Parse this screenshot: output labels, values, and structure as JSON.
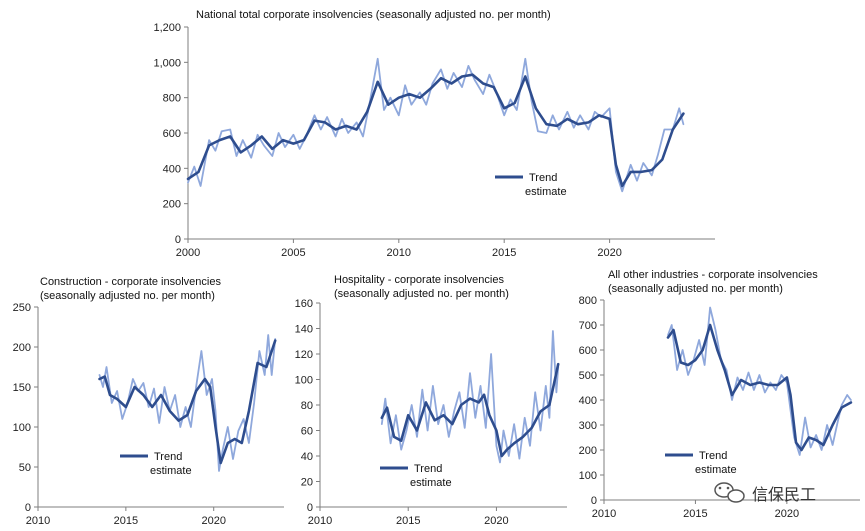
{
  "chart_data": [
    {
      "id": "national",
      "type": "line",
      "title": "National total corporate insolvencies (seasonally adjusted no. per month)",
      "subtitle": "",
      "xlim": [
        2000,
        2025
      ],
      "ylim": [
        0,
        1200
      ],
      "x_ticks": [
        2000,
        2005,
        2010,
        2015,
        2020
      ],
      "y_ticks": [
        0,
        200,
        400,
        600,
        800,
        1000,
        1200
      ],
      "y_tick_labels": [
        "0",
        "200",
        "400",
        "600",
        "800",
        "1,000",
        "1,200"
      ],
      "legend": {
        "line1": "Trend",
        "line2": "estimate"
      },
      "series": [
        {
          "name": "Trend estimate",
          "color": "#2E4D8E",
          "x": [
            2000.0,
            2000.5,
            2001.0,
            2001.5,
            2002.0,
            2002.5,
            2003.0,
            2003.5,
            2004.0,
            2004.5,
            2005.0,
            2005.5,
            2006.0,
            2006.5,
            2007.0,
            2007.5,
            2008.0,
            2008.5,
            2009.0,
            2009.5,
            2010.0,
            2010.5,
            2011.0,
            2011.5,
            2012.0,
            2012.5,
            2013.0,
            2013.5,
            2014.0,
            2014.5,
            2015.0,
            2015.5,
            2016.0,
            2016.5,
            2017.0,
            2017.5,
            2018.0,
            2018.5,
            2019.0,
            2019.5,
            2020.0,
            2020.3,
            2020.6,
            2021.0,
            2021.5,
            2022.0,
            2022.5,
            2023.0,
            2023.5
          ],
          "y": [
            340,
            380,
            530,
            560,
            580,
            490,
            530,
            580,
            510,
            560,
            540,
            560,
            670,
            660,
            620,
            640,
            620,
            720,
            890,
            760,
            800,
            820,
            800,
            850,
            910,
            880,
            920,
            930,
            880,
            860,
            740,
            770,
            920,
            740,
            650,
            640,
            680,
            650,
            660,
            700,
            680,
            420,
            300,
            380,
            380,
            390,
            450,
            620,
            710
          ]
        },
        {
          "name": "Monthly",
          "color": "#8FA8DC",
          "x": [
            2000.0,
            2000.3,
            2000.6,
            2001.0,
            2001.3,
            2001.6,
            2002.0,
            2002.3,
            2002.6,
            2003.0,
            2003.3,
            2003.6,
            2004.0,
            2004.3,
            2004.6,
            2005.0,
            2005.3,
            2005.6,
            2006.0,
            2006.3,
            2006.6,
            2007.0,
            2007.3,
            2007.6,
            2008.0,
            2008.3,
            2008.6,
            2009.0,
            2009.3,
            2009.6,
            2010.0,
            2010.3,
            2010.6,
            2011.0,
            2011.3,
            2011.6,
            2012.0,
            2012.3,
            2012.6,
            2013.0,
            2013.3,
            2013.6,
            2014.0,
            2014.3,
            2014.6,
            2015.0,
            2015.3,
            2015.6,
            2016.0,
            2016.3,
            2016.6,
            2017.0,
            2017.3,
            2017.6,
            2018.0,
            2018.3,
            2018.6,
            2019.0,
            2019.3,
            2019.6,
            2020.0,
            2020.3,
            2020.6,
            2021.0,
            2021.3,
            2021.6,
            2022.0,
            2022.3,
            2022.6,
            2023.0,
            2023.3,
            2023.5
          ],
          "y": [
            320,
            410,
            300,
            560,
            500,
            610,
            620,
            470,
            560,
            460,
            590,
            530,
            470,
            600,
            520,
            590,
            510,
            580,
            700,
            620,
            690,
            580,
            680,
            600,
            660,
            580,
            760,
            1020,
            730,
            800,
            700,
            870,
            760,
            830,
            760,
            880,
            960,
            850,
            940,
            860,
            980,
            900,
            820,
            930,
            840,
            700,
            790,
            730,
            1020,
            780,
            610,
            600,
            700,
            620,
            720,
            630,
            700,
            620,
            720,
            690,
            740,
            380,
            270,
            420,
            330,
            430,
            360,
            480,
            620,
            620,
            740,
            650
          ]
        }
      ]
    },
    {
      "id": "construction",
      "type": "line",
      "title": "Construction - corporate insolvencies",
      "subtitle": "(seasonally adjusted no. per month)",
      "xlim": [
        2010,
        2024
      ],
      "ylim": [
        0,
        250
      ],
      "x_ticks": [
        2010,
        2015,
        2020
      ],
      "y_ticks": [
        0,
        50,
        100,
        150,
        200,
        250
      ],
      "y_tick_labels": [
        "0",
        "50",
        "100",
        "150",
        "200",
        "250"
      ],
      "legend": {
        "line1": "Trend",
        "line2": "estimate"
      },
      "series": [
        {
          "name": "Trend estimate",
          "color": "#2E4D8E",
          "x": [
            2013.5,
            2013.8,
            2014.1,
            2014.5,
            2015.0,
            2015.5,
            2016.0,
            2016.5,
            2017.0,
            2017.5,
            2018.0,
            2018.5,
            2019.0,
            2019.5,
            2019.8,
            2020.1,
            2020.4,
            2020.8,
            2021.2,
            2021.6,
            2022.0,
            2022.5,
            2023.0,
            2023.5
          ],
          "y": [
            160,
            163,
            140,
            135,
            125,
            150,
            140,
            125,
            140,
            120,
            108,
            115,
            145,
            160,
            150,
            100,
            55,
            80,
            85,
            80,
            120,
            180,
            175,
            208
          ]
        },
        {
          "name": "Monthly",
          "color": "#8FA8DC",
          "x": [
            2013.5,
            2013.7,
            2013.9,
            2014.2,
            2014.5,
            2014.8,
            2015.1,
            2015.4,
            2015.7,
            2016.0,
            2016.3,
            2016.6,
            2016.9,
            2017.2,
            2017.5,
            2017.8,
            2018.1,
            2018.4,
            2018.7,
            2019.0,
            2019.3,
            2019.6,
            2019.9,
            2020.1,
            2020.3,
            2020.5,
            2020.8,
            2021.1,
            2021.4,
            2021.7,
            2022.0,
            2022.3,
            2022.6,
            2022.9,
            2023.1,
            2023.3,
            2023.5
          ],
          "y": [
            165,
            150,
            175,
            130,
            145,
            110,
            130,
            160,
            145,
            155,
            125,
            148,
            105,
            150,
            120,
            140,
            100,
            125,
            100,
            150,
            195,
            140,
            160,
            120,
            45,
            70,
            100,
            60,
            95,
            110,
            80,
            130,
            195,
            165,
            215,
            165,
            210
          ]
        }
      ]
    },
    {
      "id": "hospitality",
      "type": "line",
      "title": "Hospitality - corporate insolvencies",
      "subtitle": "(seasonally adjusted no. per month)",
      "xlim": [
        2010,
        2024
      ],
      "ylim": [
        0,
        160
      ],
      "x_ticks": [
        2010,
        2015,
        2020
      ],
      "y_ticks": [
        0,
        20,
        40,
        60,
        80,
        100,
        120,
        140,
        160
      ],
      "y_tick_labels": [
        "0",
        "20",
        "40",
        "60",
        "80",
        "100",
        "120",
        "140",
        "160"
      ],
      "legend": {
        "line1": "Trend",
        "line2": "estimate"
      },
      "series": [
        {
          "name": "Trend estimate",
          "color": "#2E4D8E",
          "x": [
            2013.5,
            2013.8,
            2014.2,
            2014.6,
            2015.0,
            2015.5,
            2016.0,
            2016.5,
            2017.0,
            2017.5,
            2018.0,
            2018.5,
            2019.0,
            2019.3,
            2019.6,
            2020.0,
            2020.3,
            2020.6,
            2021.0,
            2021.5,
            2022.0,
            2022.5,
            2023.0,
            2023.5
          ],
          "y": [
            70,
            78,
            55,
            52,
            72,
            60,
            82,
            68,
            72,
            65,
            80,
            85,
            82,
            88,
            72,
            60,
            40,
            45,
            50,
            55,
            62,
            75,
            80,
            112
          ]
        },
        {
          "name": "Monthly",
          "color": "#8FA8DC",
          "x": [
            2013.5,
            2013.7,
            2014.0,
            2014.3,
            2014.6,
            2014.9,
            2015.2,
            2015.5,
            2015.8,
            2016.1,
            2016.4,
            2016.7,
            2017.0,
            2017.3,
            2017.6,
            2017.9,
            2018.2,
            2018.5,
            2018.8,
            2019.1,
            2019.4,
            2019.7,
            2020.0,
            2020.2,
            2020.4,
            2020.7,
            2021.0,
            2021.3,
            2021.6,
            2021.9,
            2022.2,
            2022.5,
            2022.8,
            2023.0,
            2023.2,
            2023.4,
            2023.5
          ],
          "y": [
            65,
            85,
            50,
            72,
            45,
            60,
            80,
            55,
            92,
            60,
            95,
            65,
            80,
            55,
            75,
            90,
            62,
            105,
            70,
            95,
            62,
            120,
            48,
            35,
            60,
            40,
            65,
            38,
            70,
            48,
            90,
            60,
            95,
            70,
            138,
            90,
            110
          ]
        }
      ]
    },
    {
      "id": "other",
      "type": "line",
      "title": "All other industries  - corporate insolvencies",
      "subtitle": "(seasonally adjusted no. per month)",
      "xlim": [
        2010,
        2024
      ],
      "ylim": [
        0,
        800
      ],
      "x_ticks": [
        2010,
        2015,
        2020
      ],
      "y_ticks": [
        0,
        100,
        200,
        300,
        400,
        500,
        600,
        700,
        800
      ],
      "y_tick_labels": [
        "0",
        "100",
        "200",
        "300",
        "400",
        "500",
        "600",
        "700",
        "800"
      ],
      "legend": {
        "line1": "Trend",
        "line2": "estimate"
      },
      "series": [
        {
          "name": "Trend estimate",
          "color": "#2E4D8E",
          "x": [
            2013.5,
            2013.8,
            2014.2,
            2014.6,
            2015.0,
            2015.4,
            2015.8,
            2016.2,
            2016.6,
            2017.0,
            2017.5,
            2018.0,
            2018.5,
            2019.0,
            2019.5,
            2020.0,
            2020.2,
            2020.5,
            2020.8,
            2021.2,
            2021.6,
            2022.0,
            2022.5,
            2023.0,
            2023.5
          ],
          "y": [
            650,
            680,
            550,
            540,
            560,
            600,
            700,
            600,
            520,
            420,
            480,
            460,
            470,
            460,
            460,
            490,
            420,
            230,
            200,
            250,
            240,
            220,
            300,
            370,
            390
          ]
        },
        {
          "name": "Monthly",
          "color": "#8FA8DC",
          "x": [
            2013.5,
            2013.7,
            2014.0,
            2014.3,
            2014.6,
            2014.9,
            2015.2,
            2015.5,
            2015.8,
            2016.1,
            2016.4,
            2016.7,
            2017.0,
            2017.3,
            2017.6,
            2017.9,
            2018.2,
            2018.5,
            2018.8,
            2019.1,
            2019.4,
            2019.7,
            2020.0,
            2020.2,
            2020.4,
            2020.7,
            2021.0,
            2021.3,
            2021.6,
            2021.9,
            2022.2,
            2022.5,
            2022.8,
            2023.0,
            2023.3,
            2023.5
          ],
          "y": [
            660,
            700,
            520,
            600,
            500,
            560,
            640,
            540,
            770,
            680,
            560,
            520,
            400,
            490,
            440,
            510,
            440,
            500,
            430,
            470,
            440,
            500,
            470,
            360,
            250,
            180,
            330,
            210,
            260,
            200,
            300,
            220,
            320,
            380,
            420,
            400
          ]
        }
      ]
    }
  ],
  "watermark": "信保民工"
}
